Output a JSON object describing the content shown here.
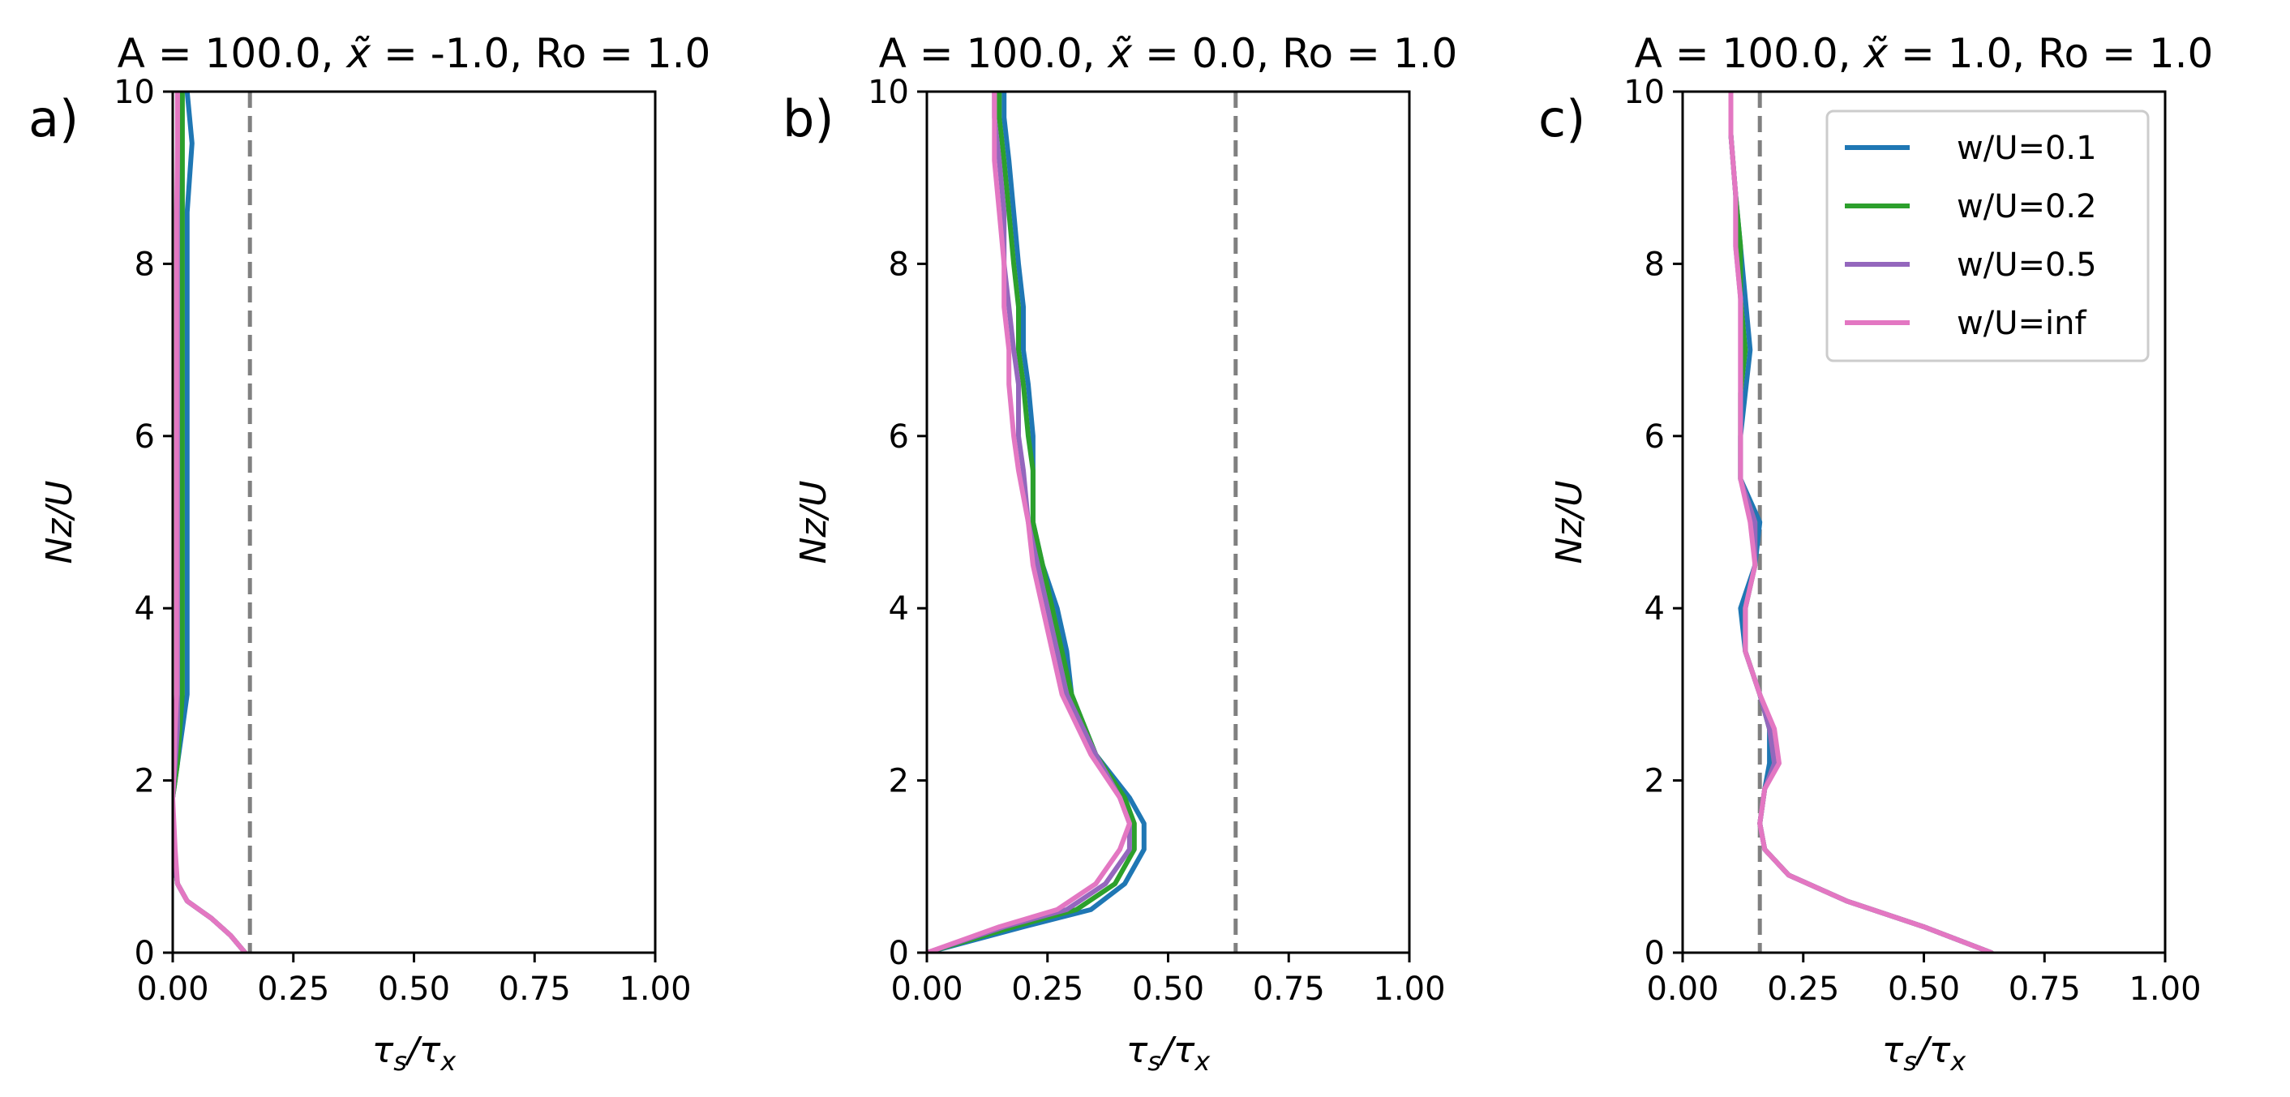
{
  "chart_data": [
    {
      "type": "line",
      "panel_label": "a)",
      "title_parts": {
        "pre": "A = 100.0, ",
        "sym": "x̃",
        "post": " = -1.0, Ro = 1.0"
      },
      "xlabel": {
        "a": "τ",
        "as": "s",
        "b": "τ",
        "bs": "x"
      },
      "ylabel": "Nz/U",
      "xlim": [
        0,
        1
      ],
      "ylim": [
        0,
        10
      ],
      "xticks": [
        "0.00",
        "0.25",
        "0.50",
        "0.75",
        "1.00"
      ],
      "yticks": [
        "0",
        "2",
        "4",
        "6",
        "8",
        "10"
      ],
      "reference_line_x": 0.16,
      "legend": false,
      "series": [
        {
          "name": "w/U=0.1",
          "color": "#1f77b4",
          "x": [
            0.15,
            0.12,
            0.08,
            0.03,
            0.01,
            0.0,
            0.0,
            0.01,
            0.02,
            0.03,
            0.03,
            0.03,
            0.03,
            0.03,
            0.03,
            0.03,
            0.03,
            0.03,
            0.03,
            0.03,
            0.03,
            0.04,
            0.03
          ],
          "y": [
            0,
            0.2,
            0.4,
            0.6,
            0.8,
            1.2,
            1.8,
            2.2,
            2.6,
            3.0,
            3.4,
            4.0,
            4.6,
            5.0,
            5.4,
            6.0,
            6.6,
            7.0,
            7.6,
            8.0,
            8.6,
            9.4,
            10
          ]
        },
        {
          "name": "w/U=0.2",
          "color": "#2ca02c",
          "x": [
            0.15,
            0.12,
            0.08,
            0.03,
            0.01,
            0.0,
            0.0,
            0.01,
            0.015,
            0.02,
            0.02,
            0.02,
            0.02,
            0.02,
            0.02,
            0.02,
            0.02,
            0.02,
            0.02,
            0.02,
            0.02,
            0.02,
            0.02
          ],
          "y": [
            0,
            0.2,
            0.4,
            0.6,
            0.8,
            1.2,
            1.8,
            2.2,
            2.6,
            3.0,
            3.4,
            4.0,
            4.6,
            5.0,
            5.4,
            6.0,
            6.6,
            7.0,
            7.6,
            8.0,
            8.6,
            9.4,
            10
          ]
        },
        {
          "name": "w/U=0.5",
          "color": "#9467bd",
          "x": [
            0.15,
            0.12,
            0.08,
            0.03,
            0.01,
            0.0,
            0.0,
            0.005,
            0.01,
            0.01,
            0.01,
            0.01,
            0.01,
            0.01,
            0.01,
            0.01,
            0.01,
            0.01,
            0.01,
            0.01,
            0.01,
            0.01,
            0.01
          ],
          "y": [
            0,
            0.2,
            0.4,
            0.6,
            0.8,
            1.2,
            1.8,
            2.2,
            2.6,
            3.0,
            3.4,
            4.0,
            4.6,
            5.0,
            5.4,
            6.0,
            6.6,
            7.0,
            7.6,
            8.0,
            8.6,
            9.4,
            10
          ]
        },
        {
          "name": "w/U=inf",
          "color": "#e377c2",
          "x": [
            0.15,
            0.12,
            0.08,
            0.03,
            0.01,
            0.005,
            0.0,
            0.003,
            0.005,
            0.008,
            0.008,
            0.008,
            0.008,
            0.008,
            0.008,
            0.008,
            0.008,
            0.008,
            0.008,
            0.008,
            0.008,
            0.01,
            0.01
          ],
          "y": [
            0,
            0.2,
            0.4,
            0.6,
            0.8,
            1.2,
            1.8,
            2.2,
            2.6,
            3.0,
            3.4,
            4.0,
            4.6,
            5.0,
            5.4,
            6.0,
            6.6,
            7.0,
            7.6,
            8.0,
            8.6,
            9.4,
            10
          ]
        }
      ]
    },
    {
      "type": "line",
      "panel_label": "b)",
      "title_parts": {
        "pre": "A = 100.0, ",
        "sym": "x̃",
        "post": " = 0.0, Ro = 1.0"
      },
      "xlabel": {
        "a": "τ",
        "as": "s",
        "b": "τ",
        "bs": "x"
      },
      "ylabel": "Nz/U",
      "xlim": [
        0,
        1
      ],
      "ylim": [
        0,
        10
      ],
      "xticks": [
        "0.00",
        "0.25",
        "0.50",
        "0.75",
        "1.00"
      ],
      "yticks": [
        "0",
        "2",
        "4",
        "6",
        "8",
        "10"
      ],
      "reference_line_x": 0.64,
      "legend": false,
      "series": [
        {
          "name": "w/U=0.1",
          "color": "#1f77b4",
          "x": [
            0,
            0.2,
            0.34,
            0.41,
            0.45,
            0.45,
            0.42,
            0.35,
            0.3,
            0.29,
            0.27,
            0.24,
            0.22,
            0.22,
            0.22,
            0.21,
            0.2,
            0.2,
            0.19,
            0.18,
            0.17,
            0.16,
            0.16
          ],
          "y": [
            0,
            0.3,
            0.5,
            0.8,
            1.2,
            1.5,
            1.8,
            2.3,
            3.0,
            3.5,
            4.0,
            4.5,
            5.0,
            5.6,
            6.0,
            6.6,
            7.0,
            7.5,
            8.0,
            8.6,
            9.2,
            9.7,
            10
          ]
        },
        {
          "name": "w/U=0.2",
          "color": "#2ca02c",
          "x": [
            0,
            0.18,
            0.31,
            0.39,
            0.43,
            0.43,
            0.41,
            0.35,
            0.3,
            0.28,
            0.26,
            0.24,
            0.22,
            0.22,
            0.21,
            0.2,
            0.19,
            0.19,
            0.18,
            0.17,
            0.16,
            0.15,
            0.15
          ],
          "y": [
            0,
            0.3,
            0.5,
            0.8,
            1.2,
            1.5,
            1.8,
            2.3,
            3.0,
            3.5,
            4.0,
            4.5,
            5.0,
            5.6,
            6.0,
            6.6,
            7.0,
            7.5,
            8.0,
            8.6,
            9.2,
            9.7,
            10
          ]
        },
        {
          "name": "w/U=0.5",
          "color": "#9467bd",
          "x": [
            0,
            0.16,
            0.29,
            0.37,
            0.42,
            0.42,
            0.4,
            0.35,
            0.29,
            0.27,
            0.25,
            0.23,
            0.21,
            0.2,
            0.19,
            0.19,
            0.18,
            0.17,
            0.16,
            0.16,
            0.15,
            0.14,
            0.14
          ],
          "y": [
            0,
            0.3,
            0.5,
            0.8,
            1.2,
            1.5,
            1.8,
            2.3,
            3.0,
            3.5,
            4.0,
            4.5,
            5.0,
            5.6,
            6.0,
            6.6,
            7.0,
            7.5,
            8.0,
            8.6,
            9.2,
            9.7,
            10
          ]
        },
        {
          "name": "w/U=inf",
          "color": "#e377c2",
          "x": [
            0,
            0.15,
            0.27,
            0.35,
            0.4,
            0.42,
            0.4,
            0.34,
            0.28,
            0.26,
            0.24,
            0.22,
            0.21,
            0.19,
            0.18,
            0.17,
            0.17,
            0.16,
            0.16,
            0.15,
            0.14,
            0.14,
            0.14
          ],
          "y": [
            0,
            0.3,
            0.5,
            0.8,
            1.2,
            1.5,
            1.8,
            2.3,
            3.0,
            3.5,
            4.0,
            4.5,
            5.0,
            5.6,
            6.0,
            6.6,
            7.0,
            7.5,
            8.0,
            8.6,
            9.2,
            9.7,
            10
          ]
        }
      ]
    },
    {
      "type": "line",
      "panel_label": "c)",
      "title_parts": {
        "pre": "A = 100.0, ",
        "sym": "x̃",
        "post": " = 1.0, Ro = 1.0"
      },
      "xlabel": {
        "a": "τ",
        "as": "s",
        "b": "τ",
        "bs": "x"
      },
      "ylabel": "Nz/U",
      "xlim": [
        0,
        1
      ],
      "ylim": [
        0,
        10
      ],
      "xticks": [
        "0.00",
        "0.25",
        "0.50",
        "0.75",
        "1.00"
      ],
      "yticks": [
        "0",
        "2",
        "4",
        "6",
        "8",
        "10"
      ],
      "reference_line_x": 0.16,
      "legend": true,
      "legend_loc": "upper right",
      "series": [
        {
          "name": "w/U=0.1",
          "color": "#1f77b4",
          "x": [
            0.64,
            0.5,
            0.34,
            0.22,
            0.17,
            0.16,
            0.17,
            0.18,
            0.18,
            0.16,
            0.13,
            0.12,
            0.15,
            0.16,
            0.12,
            0.12,
            0.13,
            0.14,
            0.13,
            0.12,
            0.11,
            0.1,
            0.1
          ],
          "y": [
            0,
            0.3,
            0.6,
            0.9,
            1.2,
            1.5,
            1.9,
            2.2,
            2.6,
            3.0,
            3.5,
            4.0,
            4.5,
            5.0,
            5.5,
            6.0,
            6.5,
            7.0,
            7.6,
            8.2,
            8.8,
            9.5,
            10
          ]
        },
        {
          "name": "w/U=0.2",
          "color": "#2ca02c",
          "x": [
            0.64,
            0.5,
            0.34,
            0.22,
            0.17,
            0.16,
            0.17,
            0.19,
            0.18,
            0.16,
            0.13,
            0.13,
            0.15,
            0.15,
            0.12,
            0.12,
            0.12,
            0.13,
            0.12,
            0.12,
            0.11,
            0.1,
            0.1
          ],
          "y": [
            0,
            0.3,
            0.6,
            0.9,
            1.2,
            1.5,
            1.9,
            2.2,
            2.6,
            3.0,
            3.5,
            4.0,
            4.5,
            5.0,
            5.5,
            6.0,
            6.5,
            7.0,
            7.6,
            8.2,
            8.8,
            9.5,
            10
          ]
        },
        {
          "name": "w/U=0.5",
          "color": "#9467bd",
          "x": [
            0.64,
            0.5,
            0.34,
            0.22,
            0.17,
            0.16,
            0.17,
            0.19,
            0.18,
            0.16,
            0.13,
            0.13,
            0.15,
            0.15,
            0.12,
            0.12,
            0.12,
            0.12,
            0.12,
            0.11,
            0.11,
            0.1,
            0.1
          ],
          "y": [
            0,
            0.3,
            0.6,
            0.9,
            1.2,
            1.5,
            1.9,
            2.2,
            2.6,
            3.0,
            3.5,
            4.0,
            4.5,
            5.0,
            5.5,
            6.0,
            6.5,
            7.0,
            7.6,
            8.2,
            8.8,
            9.5,
            10
          ]
        },
        {
          "name": "w/U=inf",
          "color": "#e377c2",
          "x": [
            0.64,
            0.5,
            0.34,
            0.22,
            0.17,
            0.16,
            0.17,
            0.2,
            0.19,
            0.16,
            0.13,
            0.13,
            0.15,
            0.14,
            0.12,
            0.12,
            0.12,
            0.12,
            0.12,
            0.11,
            0.11,
            0.1,
            0.1
          ],
          "y": [
            0,
            0.3,
            0.6,
            0.9,
            1.2,
            1.5,
            1.9,
            2.2,
            2.6,
            3.0,
            3.5,
            4.0,
            4.5,
            5.0,
            5.5,
            6.0,
            6.5,
            7.0,
            7.6,
            8.2,
            8.8,
            9.5,
            10
          ]
        }
      ]
    }
  ]
}
